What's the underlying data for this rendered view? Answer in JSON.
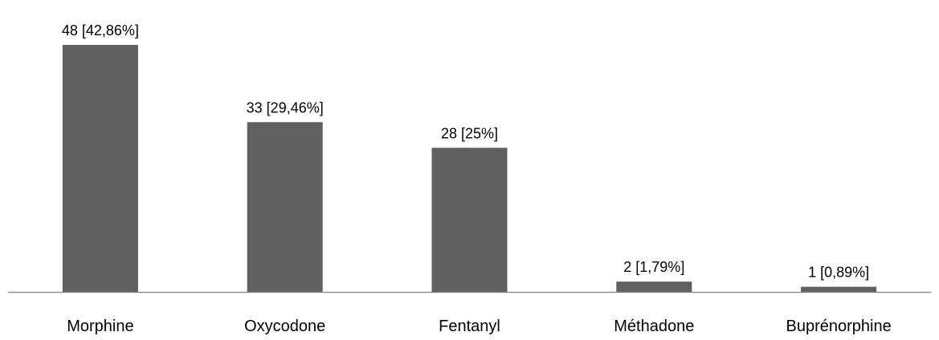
{
  "chart_data": {
    "type": "bar",
    "title": "",
    "xlabel": "",
    "ylabel": "",
    "categories": [
      "Morphine",
      "Oxycodone",
      "Fentanyl",
      "Méthadone",
      "Buprénorphine"
    ],
    "values": [
      48,
      33,
      28,
      2,
      1
    ],
    "percentages": [
      "42,86%",
      "29,46%",
      "25%",
      "1,79%",
      "0,89%"
    ],
    "data_labels": [
      "48 [42,86%]",
      "33 [29,46%]",
      "28 [25%]",
      "2 [1,79%]",
      "1 [0,89%]"
    ],
    "ylim": [
      0,
      48
    ],
    "grid": false,
    "legend": "none",
    "bar_color": "#606060",
    "axis_color": "#808080"
  }
}
